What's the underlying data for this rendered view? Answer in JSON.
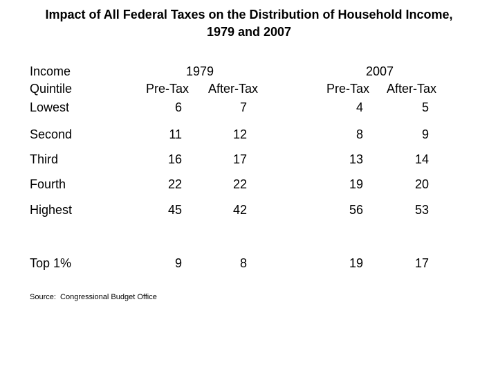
{
  "slide": {
    "title_line1": "Impact of All Federal Taxes on the Distribution of Household Income,",
    "title_line2": "1979 and 2007",
    "source": "Source:  Congressional Budget Office",
    "background_color": "#ffffff",
    "text_color": "#000000"
  },
  "table": {
    "row_header": {
      "line1": "Income",
      "line2": "Quintile"
    },
    "year_groups": [
      {
        "year": "1979",
        "col1": "Pre-Tax",
        "col2": "After-Tax"
      },
      {
        "year": "2007",
        "col1": "Pre-Tax",
        "col2": "After-Tax"
      }
    ],
    "rows": [
      {
        "label": "Lowest",
        "values": [
          6,
          7,
          4,
          5
        ]
      },
      {
        "label": "Second",
        "values": [
          11,
          12,
          8,
          9
        ]
      },
      {
        "label": "Third",
        "values": [
          16,
          17,
          13,
          14
        ]
      },
      {
        "label": "Fourth",
        "values": [
          22,
          22,
          19,
          20
        ]
      },
      {
        "label": "Highest",
        "values": [
          45,
          42,
          56,
          53
        ]
      },
      {
        "label": "Top 1%",
        "values": [
          9,
          8,
          19,
          17
        ]
      }
    ]
  }
}
